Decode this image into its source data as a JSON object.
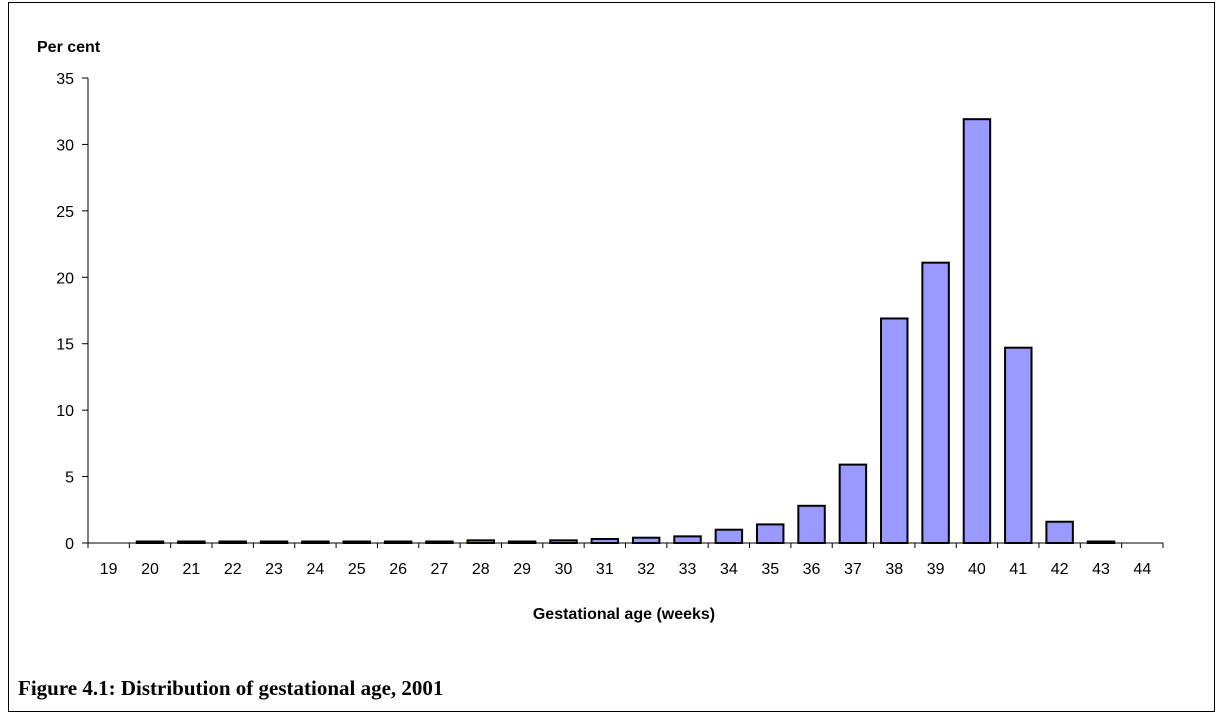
{
  "caption": "Figure 4.1: Distribution of gestational age, 2001",
  "chart_data": {
    "type": "bar",
    "title": "",
    "ylabel": "Per cent",
    "xlabel": "Gestational age (weeks)",
    "ylim": [
      0,
      35
    ],
    "yticks": [
      0,
      5,
      10,
      15,
      20,
      25,
      30,
      35
    ],
    "grid": false,
    "bar_color": "#9999ff",
    "categories": [
      "19",
      "20",
      "21",
      "22",
      "23",
      "24",
      "25",
      "26",
      "27",
      "28",
      "29",
      "30",
      "31",
      "32",
      "33",
      "34",
      "35",
      "36",
      "37",
      "38",
      "39",
      "40",
      "41",
      "42",
      "43",
      "44"
    ],
    "values": [
      0,
      0.1,
      0.1,
      0.1,
      0.1,
      0.1,
      0.1,
      0.1,
      0.1,
      0.2,
      0.1,
      0.2,
      0.3,
      0.4,
      0.5,
      1.0,
      1.4,
      2.8,
      5.9,
      16.9,
      21.1,
      31.9,
      14.7,
      1.6,
      0.1,
      0
    ]
  }
}
